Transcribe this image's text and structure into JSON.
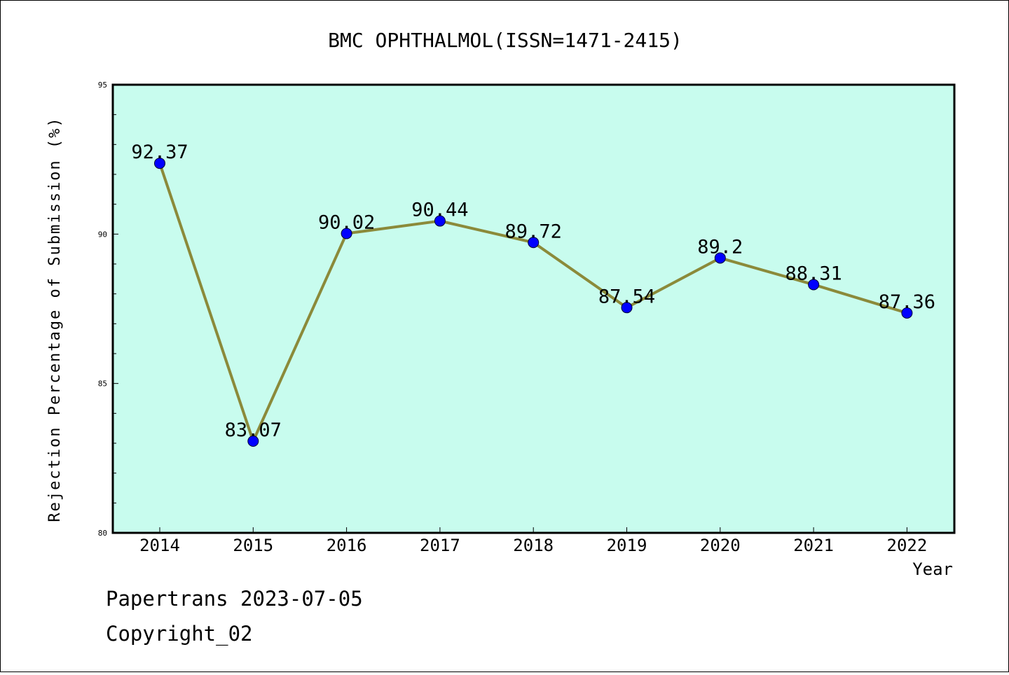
{
  "chart_data": {
    "type": "line",
    "title": "BMC OPHTHALMOL(ISSN=1471-2415)",
    "xlabel": "Year",
    "ylabel": "Rejection Percentage of Submission (%)",
    "categories": [
      "2014",
      "2015",
      "2016",
      "2017",
      "2018",
      "2019",
      "2020",
      "2021",
      "2022"
    ],
    "series": [
      {
        "values": [
          92.37,
          83.07,
          90.02,
          90.44,
          89.72,
          87.54,
          89.2,
          88.31,
          87.36
        ],
        "labels": [
          "92.37",
          "83.07",
          "90.02",
          "90.44",
          "89.72",
          "87.54",
          "89.2",
          "88.31",
          "87.36"
        ]
      }
    ],
    "ylim": [
      80,
      95
    ],
    "yticks": [
      80,
      85,
      90,
      95
    ],
    "ytick_labels": [
      "80",
      "85",
      "90",
      "95"
    ],
    "grid": false,
    "colors": {
      "plot_background": "#c8fcee",
      "line": "#8b8a3a",
      "marker": "#0000ff"
    }
  },
  "footer": {
    "line1": "Papertrans 2023-07-05",
    "line2": "Copyright_02"
  }
}
